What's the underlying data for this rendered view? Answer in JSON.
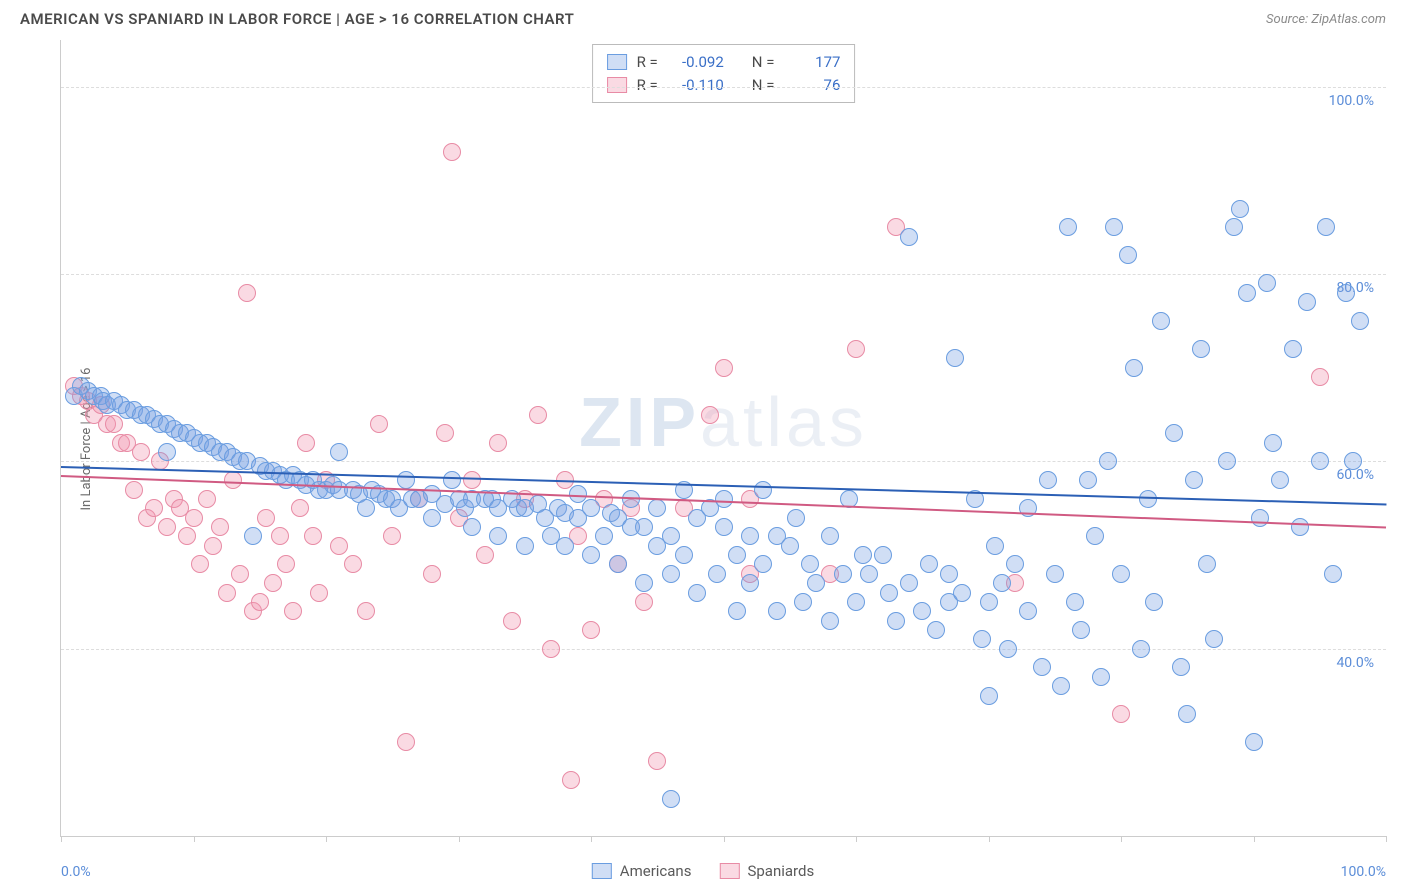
{
  "header": {
    "title": "AMERICAN VS SPANIARD IN LABOR FORCE | AGE > 16 CORRELATION CHART",
    "source": "Source: ZipAtlas.com"
  },
  "chart": {
    "type": "scatter",
    "ylabel": "In Labor Force | Age > 16",
    "watermark": "ZIPatlas",
    "background_color": "#ffffff",
    "grid_color": "#dddddd",
    "axis_color": "#cccccc",
    "tick_label_color": "#5b8dd8",
    "xlim": [
      0,
      100
    ],
    "ylim": [
      20,
      105
    ],
    "xticks": [
      0,
      10,
      20,
      30,
      40,
      50,
      60,
      70,
      80,
      90,
      100
    ],
    "xtick_labels": {
      "0": "0.0%",
      "100": "100.0%"
    },
    "yticks": [
      40,
      60,
      80,
      100
    ],
    "ytick_labels": {
      "40": "40.0%",
      "60": "60.0%",
      "80": "80.0%",
      "100": "100.0%"
    },
    "marker_radius": 9,
    "marker_border_width": 1,
    "series": {
      "americans": {
        "label": "Americans",
        "fill": "rgba(120,160,225,0.35)",
        "stroke": "#6a9de0",
        "trend_color": "#2b5fb5",
        "trend": {
          "x1": 0,
          "y1": 59.5,
          "x2": 100,
          "y2": 55.5
        },
        "R": "-0.092",
        "N": "177",
        "points": [
          [
            1,
            67
          ],
          [
            1.5,
            68
          ],
          [
            2,
            67.5
          ],
          [
            2.5,
            67
          ],
          [
            3,
            67
          ],
          [
            3.2,
            66.5
          ],
          [
            3.5,
            66
          ],
          [
            4,
            66.5
          ],
          [
            4.5,
            66
          ],
          [
            5,
            65.5
          ],
          [
            5.5,
            65.5
          ],
          [
            6,
            65
          ],
          [
            6.5,
            65
          ],
          [
            7,
            64.5
          ],
          [
            7.5,
            64
          ],
          [
            8,
            64
          ],
          [
            8.5,
            63.5
          ],
          [
            8,
            61
          ],
          [
            9,
            63
          ],
          [
            9.5,
            63
          ],
          [
            10,
            62.5
          ],
          [
            10.5,
            62
          ],
          [
            11,
            62
          ],
          [
            11.5,
            61.5
          ],
          [
            12,
            61
          ],
          [
            12.5,
            61
          ],
          [
            13,
            60.5
          ],
          [
            13.5,
            60
          ],
          [
            14,
            60
          ],
          [
            14.5,
            52
          ],
          [
            15,
            59.5
          ],
          [
            15.5,
            59
          ],
          [
            16,
            59
          ],
          [
            16.5,
            58.5
          ],
          [
            17,
            58
          ],
          [
            17.5,
            58.5
          ],
          [
            18,
            58
          ],
          [
            18.5,
            57.5
          ],
          [
            19,
            58
          ],
          [
            19.5,
            57
          ],
          [
            20,
            57
          ],
          [
            20.5,
            57.5
          ],
          [
            21,
            57
          ],
          [
            21,
            61
          ],
          [
            22,
            57
          ],
          [
            22.5,
            56.5
          ],
          [
            23,
            55
          ],
          [
            23.5,
            57
          ],
          [
            24,
            56.5
          ],
          [
            24.5,
            56
          ],
          [
            25,
            56
          ],
          [
            25.5,
            55
          ],
          [
            26,
            58
          ],
          [
            26.5,
            56
          ],
          [
            27,
            56
          ],
          [
            28,
            56.5
          ],
          [
            28,
            54
          ],
          [
            29,
            55.5
          ],
          [
            29.5,
            58
          ],
          [
            30,
            56
          ],
          [
            30.5,
            55
          ],
          [
            31,
            56
          ],
          [
            31,
            53
          ],
          [
            32,
            56
          ],
          [
            32.5,
            56
          ],
          [
            33,
            55
          ],
          [
            33,
            52
          ],
          [
            34,
            56
          ],
          [
            34.5,
            55
          ],
          [
            35,
            55
          ],
          [
            35,
            51
          ],
          [
            36,
            55.5
          ],
          [
            36.5,
            54
          ],
          [
            37,
            52
          ],
          [
            37.5,
            55
          ],
          [
            38,
            54.5
          ],
          [
            38,
            51
          ],
          [
            39,
            54
          ],
          [
            39,
            56.5
          ],
          [
            40,
            55
          ],
          [
            40,
            50
          ],
          [
            41,
            52
          ],
          [
            41.5,
            54.5
          ],
          [
            42,
            54
          ],
          [
            42,
            49
          ],
          [
            43,
            53
          ],
          [
            43,
            56
          ],
          [
            44,
            53
          ],
          [
            44,
            47
          ],
          [
            45,
            51
          ],
          [
            45,
            55
          ],
          [
            46,
            52
          ],
          [
            46,
            48
          ],
          [
            47,
            50
          ],
          [
            47,
            57
          ],
          [
            48,
            54
          ],
          [
            48,
            46
          ],
          [
            49,
            55
          ],
          [
            49.5,
            48
          ],
          [
            50,
            53
          ],
          [
            50,
            56
          ],
          [
            51,
            50
          ],
          [
            51,
            44
          ],
          [
            52,
            52
          ],
          [
            52,
            47
          ],
          [
            53,
            49
          ],
          [
            53,
            57
          ],
          [
            54,
            52
          ],
          [
            54,
            44
          ],
          [
            55,
            51
          ],
          [
            55.5,
            54
          ],
          [
            56,
            45
          ],
          [
            56.5,
            49
          ],
          [
            57,
            47
          ],
          [
            58,
            52
          ],
          [
            58,
            43
          ],
          [
            59,
            48
          ],
          [
            59.5,
            56
          ],
          [
            60,
            45
          ],
          [
            60.5,
            50
          ],
          [
            61,
            48
          ],
          [
            62,
            50
          ],
          [
            62.5,
            46
          ],
          [
            63,
            43
          ],
          [
            64,
            47
          ],
          [
            64,
            84
          ],
          [
            65,
            44
          ],
          [
            65.5,
            49
          ],
          [
            66,
            42
          ],
          [
            67,
            48
          ],
          [
            67,
            45
          ],
          [
            67.5,
            71
          ],
          [
            68,
            46
          ],
          [
            69,
            56
          ],
          [
            69.5,
            41
          ],
          [
            70,
            45
          ],
          [
            70.5,
            51
          ],
          [
            70,
            35
          ],
          [
            71,
            47
          ],
          [
            71.5,
            40
          ],
          [
            72,
            49
          ],
          [
            73,
            44
          ],
          [
            73,
            55
          ],
          [
            74,
            38
          ],
          [
            74.5,
            58
          ],
          [
            75,
            48
          ],
          [
            75.5,
            36
          ],
          [
            76,
            85
          ],
          [
            76.5,
            45
          ],
          [
            77,
            42
          ],
          [
            77.5,
            58
          ],
          [
            78,
            52
          ],
          [
            78.5,
            37
          ],
          [
            79,
            60
          ],
          [
            79.5,
            85
          ],
          [
            80,
            48
          ],
          [
            80.5,
            82
          ],
          [
            81,
            70
          ],
          [
            81.5,
            40
          ],
          [
            82,
            56
          ],
          [
            82.5,
            45
          ],
          [
            83,
            75
          ],
          [
            84,
            63
          ],
          [
            84.5,
            38
          ],
          [
            85,
            33
          ],
          [
            85.5,
            58
          ],
          [
            86,
            72
          ],
          [
            86.5,
            49
          ],
          [
            87,
            41
          ],
          [
            88,
            60
          ],
          [
            88.5,
            85
          ],
          [
            89,
            87
          ],
          [
            89.5,
            78
          ],
          [
            90,
            30
          ],
          [
            90.5,
            54
          ],
          [
            91,
            79
          ],
          [
            91.5,
            62
          ],
          [
            92,
            58
          ],
          [
            93,
            72
          ],
          [
            93.5,
            53
          ],
          [
            94,
            77
          ],
          [
            95,
            60
          ],
          [
            95.5,
            85
          ],
          [
            96,
            48
          ],
          [
            97,
            78
          ],
          [
            97.5,
            60
          ],
          [
            98,
            75
          ],
          [
            46,
            24
          ]
        ]
      },
      "spaniards": {
        "label": "Spaniards",
        "fill": "rgba(240,150,175,0.35)",
        "stroke": "#e88ba5",
        "trend_color": "#d05a82",
        "trend": {
          "x1": 0,
          "y1": 58.5,
          "x2": 100,
          "y2": 53
        },
        "R": "-0.110",
        "N": "76",
        "points": [
          [
            1,
            68
          ],
          [
            1.5,
            67
          ],
          [
            2,
            66.5
          ],
          [
            2.5,
            65
          ],
          [
            3,
            66
          ],
          [
            3.5,
            64
          ],
          [
            4,
            64
          ],
          [
            4.5,
            62
          ],
          [
            5,
            62
          ],
          [
            5.5,
            57
          ],
          [
            6,
            61
          ],
          [
            6.5,
            54
          ],
          [
            7,
            55
          ],
          [
            7.5,
            60
          ],
          [
            8,
            53
          ],
          [
            8.5,
            56
          ],
          [
            9,
            55
          ],
          [
            9.5,
            52
          ],
          [
            10,
            54
          ],
          [
            10.5,
            49
          ],
          [
            11,
            56
          ],
          [
            11.5,
            51
          ],
          [
            12,
            53
          ],
          [
            12.5,
            46
          ],
          [
            13,
            58
          ],
          [
            13.5,
            48
          ],
          [
            14,
            78
          ],
          [
            14.5,
            44
          ],
          [
            15,
            45
          ],
          [
            15.5,
            54
          ],
          [
            16,
            47
          ],
          [
            16.5,
            52
          ],
          [
            17,
            49
          ],
          [
            17.5,
            44
          ],
          [
            18,
            55
          ],
          [
            18.5,
            62
          ],
          [
            19,
            52
          ],
          [
            19.5,
            46
          ],
          [
            20,
            58
          ],
          [
            21,
            51
          ],
          [
            22,
            49
          ],
          [
            23,
            44
          ],
          [
            24,
            64
          ],
          [
            25,
            52
          ],
          [
            26,
            30
          ],
          [
            27,
            56
          ],
          [
            28,
            48
          ],
          [
            29,
            63
          ],
          [
            29.5,
            93
          ],
          [
            30,
            54
          ],
          [
            31,
            58
          ],
          [
            32,
            50
          ],
          [
            33,
            62
          ],
          [
            34,
            43
          ],
          [
            35,
            56
          ],
          [
            36,
            65
          ],
          [
            37,
            40
          ],
          [
            38,
            58
          ],
          [
            38.5,
            26
          ],
          [
            39,
            52
          ],
          [
            40,
            42
          ],
          [
            41,
            56
          ],
          [
            42,
            49
          ],
          [
            43,
            55
          ],
          [
            44,
            45
          ],
          [
            45,
            28
          ],
          [
            47,
            55
          ],
          [
            49,
            65
          ],
          [
            50,
            70
          ],
          [
            52,
            56
          ],
          [
            52,
            48
          ],
          [
            58,
            48
          ],
          [
            60,
            72
          ],
          [
            63,
            85
          ],
          [
            72,
            47
          ],
          [
            80,
            33
          ],
          [
            95,
            69
          ]
        ]
      }
    }
  },
  "legend_top": {
    "r_label": "R =",
    "n_label": "N ="
  },
  "legend_bottom": {
    "s1": "Americans",
    "s2": "Spaniards"
  }
}
